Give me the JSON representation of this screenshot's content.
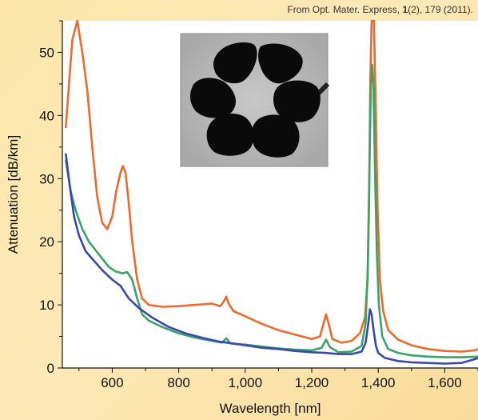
{
  "credit": {
    "prefix": "From Opt. Mater. Express, ",
    "volume": "1",
    "rest": "(2), 179 (2011)."
  },
  "chart_data": {
    "type": "line",
    "title": "",
    "xlabel": "Wavelength [nm]",
    "ylabel": "Attenuation [dB/km]",
    "xlim": [
      450,
      1700
    ],
    "ylim": [
      0,
      55
    ],
    "xticks": [
      600,
      800,
      1000,
      1200,
      1400,
      1600
    ],
    "xtick_labels": [
      "600",
      "800",
      "1,000",
      "1,200",
      "1,400",
      "1,600"
    ],
    "yticks": [
      0,
      10,
      20,
      30,
      40,
      50
    ],
    "ytick_labels": [
      "0",
      "10",
      "20",
      "30",
      "40",
      "50"
    ],
    "grid": false,
    "legend": "none",
    "inset": "hollow-core fiber cross-section micrograph with six dark lobes",
    "series": [
      {
        "color": "#ee6a2c",
        "points": [
          [
            460,
            38
          ],
          [
            480,
            52
          ],
          [
            495,
            55
          ],
          [
            510,
            50
          ],
          [
            525,
            44
          ],
          [
            540,
            35
          ],
          [
            555,
            27
          ],
          [
            570,
            23
          ],
          [
            585,
            22
          ],
          [
            600,
            24
          ],
          [
            612,
            28
          ],
          [
            625,
            31
          ],
          [
            632,
            32
          ],
          [
            640,
            31
          ],
          [
            648,
            27
          ],
          [
            660,
            20
          ],
          [
            675,
            14
          ],
          [
            690,
            11
          ],
          [
            710,
            10
          ],
          [
            750,
            9.7
          ],
          [
            800,
            9.8
          ],
          [
            850,
            10
          ],
          [
            900,
            10.2
          ],
          [
            925,
            9.8
          ],
          [
            935,
            10.5
          ],
          [
            943,
            11.3
          ],
          [
            950,
            10.2
          ],
          [
            965,
            9
          ],
          [
            1000,
            8.2
          ],
          [
            1050,
            7
          ],
          [
            1100,
            6
          ],
          [
            1150,
            5.3
          ],
          [
            1200,
            4.6
          ],
          [
            1225,
            5
          ],
          [
            1235,
            7
          ],
          [
            1243,
            8.5
          ],
          [
            1252,
            6.8
          ],
          [
            1262,
            4.6
          ],
          [
            1290,
            4
          ],
          [
            1320,
            4.3
          ],
          [
            1345,
            5.5
          ],
          [
            1360,
            8
          ],
          [
            1368,
            14
          ],
          [
            1372,
            25
          ],
          [
            1376,
            45
          ],
          [
            1380,
            55
          ],
          [
            1387,
            55
          ],
          [
            1392,
            42
          ],
          [
            1398,
            25
          ],
          [
            1405,
            14
          ],
          [
            1415,
            9
          ],
          [
            1430,
            6
          ],
          [
            1460,
            4.5
          ],
          [
            1500,
            3.6
          ],
          [
            1550,
            3
          ],
          [
            1600,
            2.7
          ],
          [
            1650,
            2.6
          ],
          [
            1690,
            2.8
          ],
          [
            1700,
            3
          ]
        ]
      },
      {
        "color": "#3aa36b",
        "points": [
          [
            460,
            33
          ],
          [
            475,
            28
          ],
          [
            490,
            25
          ],
          [
            510,
            22
          ],
          [
            530,
            20
          ],
          [
            560,
            18
          ],
          [
            590,
            16
          ],
          [
            610,
            15.3
          ],
          [
            630,
            15
          ],
          [
            645,
            15.2
          ],
          [
            660,
            14
          ],
          [
            675,
            11
          ],
          [
            690,
            8.5
          ],
          [
            710,
            7.5
          ],
          [
            750,
            6.5
          ],
          [
            800,
            5.5
          ],
          [
            850,
            4.8
          ],
          [
            900,
            4.3
          ],
          [
            930,
            4
          ],
          [
            943,
            4.7
          ],
          [
            955,
            3.9
          ],
          [
            1000,
            3.7
          ],
          [
            1050,
            3.4
          ],
          [
            1100,
            3.1
          ],
          [
            1150,
            2.9
          ],
          [
            1200,
            2.8
          ],
          [
            1230,
            3.2
          ],
          [
            1243,
            4.5
          ],
          [
            1255,
            3.3
          ],
          [
            1280,
            2.5
          ],
          [
            1320,
            2.6
          ],
          [
            1350,
            3.5
          ],
          [
            1362,
            7
          ],
          [
            1368,
            15
          ],
          [
            1373,
            30
          ],
          [
            1378,
            45
          ],
          [
            1382,
            48
          ],
          [
            1386,
            44
          ],
          [
            1390,
            32
          ],
          [
            1396,
            18
          ],
          [
            1402,
            10
          ],
          [
            1412,
            5
          ],
          [
            1430,
            3
          ],
          [
            1460,
            2.4
          ],
          [
            1500,
            2
          ],
          [
            1550,
            1.8
          ],
          [
            1600,
            1.7
          ],
          [
            1650,
            1.7
          ],
          [
            1700,
            1.8
          ]
        ]
      },
      {
        "color": "#3a48a8",
        "points": [
          [
            460,
            34
          ],
          [
            472,
            29
          ],
          [
            485,
            24
          ],
          [
            500,
            21
          ],
          [
            520,
            18.5
          ],
          [
            545,
            17
          ],
          [
            570,
            15.5
          ],
          [
            600,
            14
          ],
          [
            625,
            13
          ],
          [
            650,
            11
          ],
          [
            680,
            9.5
          ],
          [
            720,
            8
          ],
          [
            770,
            6.5
          ],
          [
            820,
            5.5
          ],
          [
            870,
            4.8
          ],
          [
            920,
            4.2
          ],
          [
            960,
            3.9
          ],
          [
            1000,
            3.6
          ],
          [
            1050,
            3.2
          ],
          [
            1100,
            3
          ],
          [
            1150,
            2.7
          ],
          [
            1200,
            2.5
          ],
          [
            1240,
            2.4
          ],
          [
            1280,
            2.2
          ],
          [
            1320,
            2.2
          ],
          [
            1350,
            2.6
          ],
          [
            1362,
            4
          ],
          [
            1370,
            7
          ],
          [
            1375,
            9.3
          ],
          [
            1380,
            8.5
          ],
          [
            1386,
            6
          ],
          [
            1393,
            3.5
          ],
          [
            1400,
            2.4
          ],
          [
            1420,
            1.6
          ],
          [
            1460,
            1.1
          ],
          [
            1500,
            0.9
          ],
          [
            1550,
            0.8
          ],
          [
            1600,
            0.7
          ],
          [
            1650,
            0.8
          ],
          [
            1690,
            1.4
          ],
          [
            1700,
            1.6
          ]
        ]
      }
    ]
  }
}
